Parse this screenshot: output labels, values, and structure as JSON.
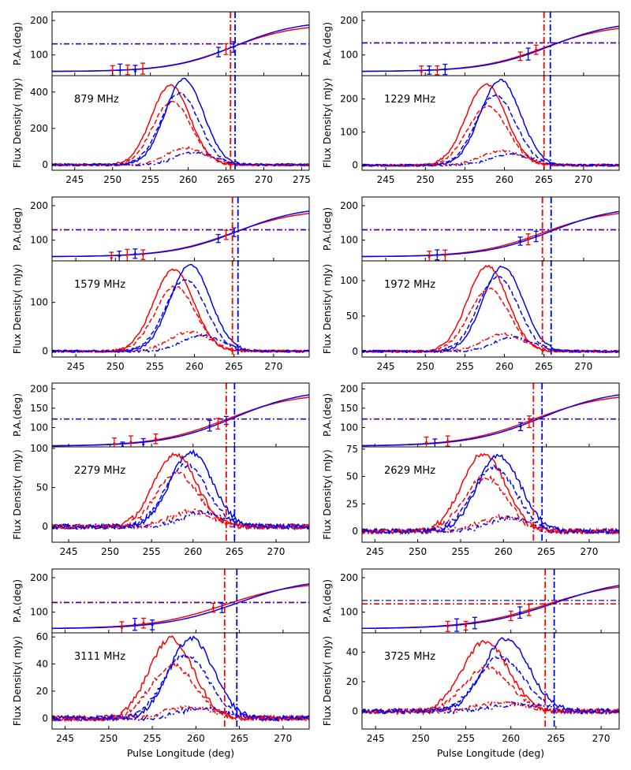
{
  "chart_data": {
    "type": "line",
    "title": "",
    "xlabel": "Pulse Longitude (deg)",
    "ylabel_top": "P.A.(deg)",
    "ylabel_bottom": "Flux Density( mJy)",
    "ylabel_bottom_alt": "Flux Density( mJy)",
    "series_styles": {
      "total_intensity": "solid",
      "linear_polarization": "dashed",
      "circular_polarization": "dash-dot",
      "colors": {
        "low_band_fit": "#ff0000",
        "high_band_fit": "#0000ff"
      }
    },
    "panels": [
      {
        "freq_label": "879 MHz",
        "xlim": [
          242,
          276
        ],
        "xticks": [
          245,
          250,
          255,
          260,
          265,
          270,
          275
        ],
        "pa_ylim": [
          40,
          225
        ],
        "pa_yticks": [
          100,
          200
        ],
        "pa_hline": [
          132,
          132
        ],
        "flux_ylim": [
          -30,
          490
        ],
        "flux_yticks": [
          0,
          200,
          400
        ],
        "peak_I": [
          445,
          480
        ],
        "peak_L": [
          355,
          400
        ],
        "peak_V": [
          95,
          70
        ],
        "center": [
          257.3,
          258.5
        ],
        "vlines": [
          265.6,
          266.2
        ],
        "pa_points_x": [
          250.0,
          251.0,
          252.0,
          253.0,
          254.0,
          264.0,
          265.0,
          266.0
        ]
      },
      {
        "freq_label": "1229 MHz",
        "xlim": [
          242,
          274.5
        ],
        "xticks": [
          245,
          250,
          255,
          260,
          265,
          270
        ],
        "pa_ylim": [
          40,
          225
        ],
        "pa_yticks": [
          100,
          200
        ],
        "pa_hline": [
          135,
          135
        ],
        "flux_ylim": [
          -15,
          270
        ],
        "flux_yticks": [
          0,
          100,
          200
        ],
        "peak_I": [
          248,
          262
        ],
        "peak_L": [
          180,
          215
        ],
        "peak_V": [
          45,
          35
        ],
        "center": [
          257.3,
          258.5
        ],
        "vlines": [
          265.0,
          265.8
        ],
        "pa_points_x": [
          249.5,
          250.5,
          251.5,
          252.5,
          262.0,
          263.0,
          264.0
        ]
      },
      {
        "freq_label": "1579 MHz",
        "xlim": [
          242,
          274.5
        ],
        "xticks": [
          245,
          250,
          255,
          260,
          265,
          270
        ],
        "pa_ylim": [
          40,
          225
        ],
        "pa_yticks": [
          100,
          200
        ],
        "pa_hline": [
          130,
          130
        ],
        "flux_ylim": [
          -12,
          185
        ],
        "flux_yticks": [
          0,
          100
        ],
        "peak_I": [
          170,
          180
        ],
        "peak_L": [
          135,
          150
        ],
        "peak_V": [
          40,
          33
        ],
        "center": [
          257.0,
          258.5
        ],
        "vlines": [
          264.8,
          265.5
        ],
        "pa_points_x": [
          249.5,
          250.5,
          251.5,
          252.5,
          253.5,
          263.0,
          264.0,
          265.0
        ]
      },
      {
        "freq_label": "1972 MHz",
        "xlim": [
          242,
          274.5
        ],
        "xticks": [
          245,
          250,
          255,
          260,
          265,
          270
        ],
        "pa_ylim": [
          40,
          225
        ],
        "pa_yticks": [
          100,
          200
        ],
        "pa_hline": [
          130,
          130
        ],
        "flux_ylim": [
          -8,
          128
        ],
        "flux_yticks": [
          0,
          50,
          100
        ],
        "peak_I": [
          123,
          122
        ],
        "peak_L": [
          90,
          108
        ],
        "peak_V": [
          25,
          20
        ],
        "center": [
          257.5,
          258.8
        ],
        "vlines": [
          264.8,
          265.9
        ],
        "pa_points_x": [
          250.5,
          251.5,
          252.5,
          262.0,
          263.0,
          264.0
        ]
      },
      {
        "freq_label": "2279 MHz",
        "xlim": [
          243,
          274
        ],
        "xticks": [
          245,
          250,
          255,
          260,
          265,
          270
        ],
        "pa_ylim": [
          50,
          215
        ],
        "pa_yticks": [
          100,
          150,
          200
        ],
        "pa_hline": [
          122,
          122
        ],
        "flux_ylim": [
          -20,
          102
        ],
        "flux_yticks": [
          0,
          50,
          100
        ],
        "peak_I": [
          95,
          97
        ],
        "peak_L": [
          70,
          80
        ],
        "peak_V": [
          20,
          18
        ],
        "center": [
          257.5,
          258.8
        ],
        "vlines": [
          264.0,
          265.0
        ],
        "pa_points_x": [
          250.5,
          251.5,
          252.5,
          254.0,
          255.5,
          262.0,
          263.0,
          264.0
        ]
      },
      {
        "freq_label": "2629 MHz",
        "xlim": [
          243.5,
          273.5
        ],
        "xticks": [
          245,
          250,
          255,
          260,
          265,
          270
        ],
        "pa_ylim": [
          50,
          215
        ],
        "pa_yticks": [
          100,
          150,
          200
        ],
        "pa_hline": [
          122,
          122
        ],
        "flux_ylim": [
          -10,
          77
        ],
        "flux_yticks": [
          0,
          25,
          50,
          75
        ],
        "peak_I": [
          72,
          70
        ],
        "peak_L": [
          50,
          60
        ],
        "peak_V": [
          13,
          12
        ],
        "center": [
          257.3,
          258.5
        ],
        "vlines": [
          263.5,
          264.5
        ],
        "pa_points_x": [
          251.0,
          252.0,
          253.5,
          262.0,
          263.0
        ]
      },
      {
        "freq_label": "3111 MHz",
        "xlim": [
          243.5,
          273
        ],
        "xticks": [
          245,
          250,
          255,
          260,
          265,
          270
        ],
        "pa_ylim": [
          40,
          225
        ],
        "pa_yticks": [
          100,
          200
        ],
        "pa_hline": [
          128,
          128
        ],
        "flux_ylim": [
          -8,
          63
        ],
        "flux_yticks": [
          0,
          20,
          40,
          60
        ],
        "peak_I": [
          60,
          60
        ],
        "peak_L": [
          40,
          48
        ],
        "peak_V": [
          9,
          8
        ],
        "center": [
          256.8,
          258.5
        ],
        "vlines": [
          263.3,
          264.7
        ],
        "pa_points_x": [
          251.5,
          253.0,
          254.0,
          255.0,
          262.0,
          263.0
        ]
      },
      {
        "freq_label": "3725 MHz",
        "xlim": [
          243.5,
          272
        ],
        "xticks": [
          245,
          250,
          255,
          260,
          265,
          270
        ],
        "pa_ylim": [
          40,
          225
        ],
        "pa_yticks": [
          100,
          200
        ],
        "pa_hline": [
          124,
          134
        ],
        "flux_ylim": [
          -12,
          53
        ],
        "flux_yticks": [
          0,
          20,
          40
        ],
        "peak_I": [
          48,
          50
        ],
        "peak_L": [
          30,
          37
        ],
        "peak_V": [
          6,
          5
        ],
        "center": [
          256.8,
          258.5
        ],
        "vlines": [
          263.8,
          264.8
        ],
        "pa_points_x": [
          253.0,
          254.0,
          255.0,
          256.0,
          260.0,
          261.0,
          262.0
        ]
      }
    ]
  }
}
